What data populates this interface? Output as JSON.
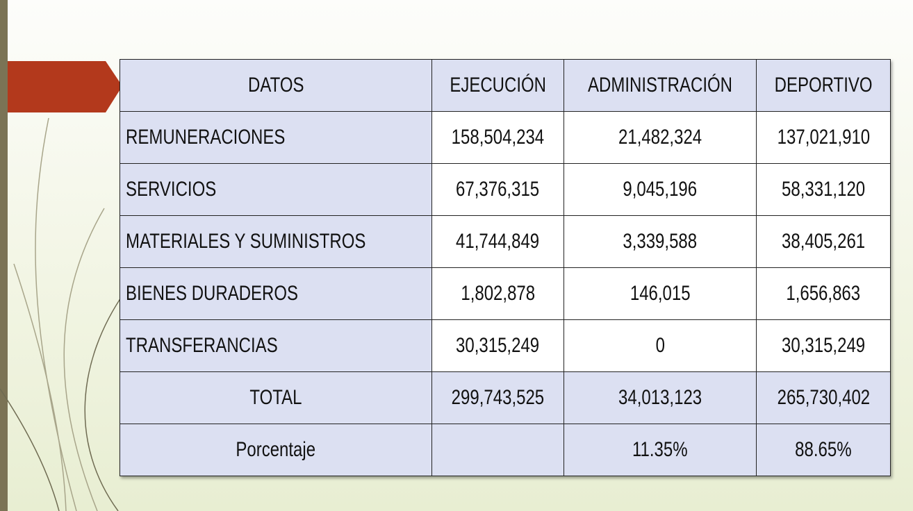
{
  "table": {
    "header": [
      "DATOS",
      "EJECUCIÓN",
      "ADMINISTRACIÓN",
      "DEPORTIVO"
    ],
    "rows": [
      [
        "REMUNERACIONES",
        "158,504,234",
        "21,482,324",
        "137,021,910"
      ],
      [
        "SERVICIOS",
        "67,376,315",
        "9,045,196",
        "58,331,120"
      ],
      [
        "MATERIALES Y SUMINISTROS",
        "41,744,849",
        "3,339,588",
        "38,405,261"
      ],
      [
        "BIENES DURADEROS",
        "1,802,878",
        "146,015",
        "1,656,863"
      ],
      [
        "TRANSFERANCIAS",
        "30,315,249",
        "0",
        "30,315,249"
      ],
      [
        "TOTAL",
        "299,743,525",
        "34,013,123",
        "265,730,402"
      ],
      [
        "Porcentaje",
        null,
        "11.35%",
        "88.65%"
      ]
    ]
  }
}
